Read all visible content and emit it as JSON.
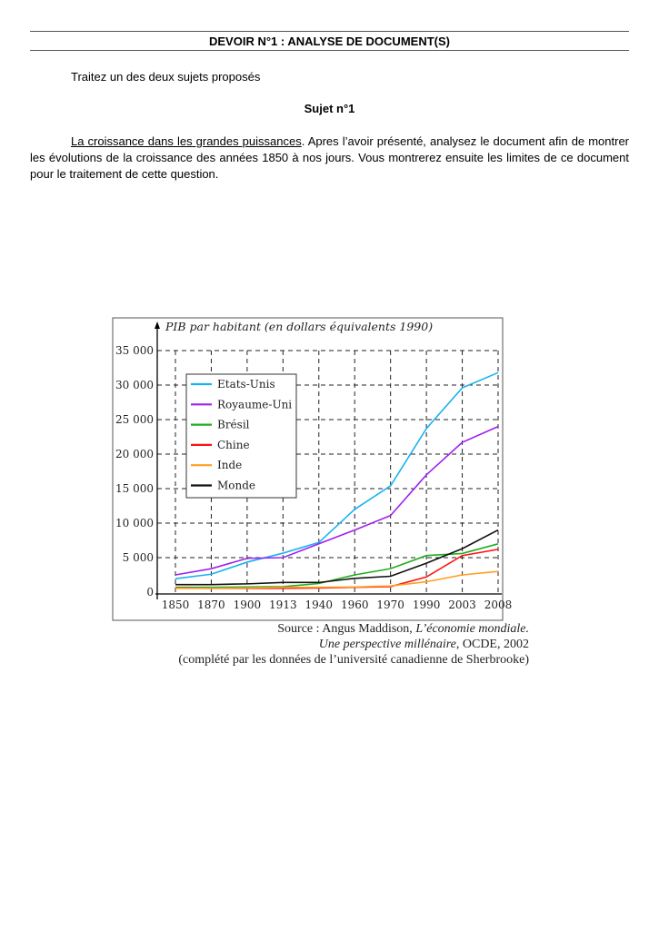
{
  "header": {
    "title": "DEVOIR N°1 : ANALYSE DE DOCUMENT(S)"
  },
  "intro": "Traitez un des deux sujets proposés",
  "subject": {
    "heading": "Sujet n°1",
    "underlined": "La croissance dans les grandes puissances",
    "text": ". Apres l’avoir présenté, analysez le document afin de montrer les évolutions de la croissance des années 1850 à nos jours. Vous montrerez ensuite les limites de ce document pour le traitement de cette question."
  },
  "chart_data": {
    "type": "line",
    "ylabel": "PIB par habitant (en dollars équivalents 1990)",
    "categories": [
      "1850",
      "1870",
      "1900",
      "1913",
      "1940",
      "1960",
      "1970",
      "1990",
      "2003",
      "2008"
    ],
    "yticks": [
      "0",
      "5 000",
      "10 000",
      "15 000",
      "20 000",
      "25 000",
      "30 000",
      "35 000"
    ],
    "ylim": [
      0,
      35000
    ],
    "grid": true,
    "legend_position": "top-left",
    "series": [
      {
        "name": "Etats-Unis",
        "color": "#1ab2f0",
        "values": [
          1950,
          2600,
          4350,
          5650,
          7200,
          12000,
          15400,
          23700,
          29600,
          31800
        ]
      },
      {
        "name": "Royaume-Uni",
        "color": "#a020f0",
        "values": [
          2500,
          3400,
          4900,
          5000,
          7000,
          9000,
          11100,
          17000,
          21700,
          24000
        ]
      },
      {
        "name": "Brésil",
        "color": "#1fae1f",
        "values": [
          700,
          700,
          750,
          800,
          1250,
          2500,
          3400,
          5300,
          5600,
          7000
        ]
      },
      {
        "name": "Chine",
        "color": "#ff1010",
        "values": [
          600,
          550,
          550,
          550,
          600,
          700,
          800,
          2200,
          5300,
          6200
        ]
      },
      {
        "name": "Inde",
        "color": "#ffa020",
        "values": [
          550,
          550,
          600,
          700,
          700,
          750,
          900,
          1500,
          2500,
          3000
        ]
      },
      {
        "name": "Monde",
        "color": "#111111",
        "values": [
          1100,
          1100,
          1200,
          1400,
          1400,
          2000,
          2300,
          4200,
          6300,
          9000
        ]
      }
    ]
  },
  "source": {
    "line1_prefix": "Source : Angus Maddison, ",
    "line1_italic": "L’économie mondiale.",
    "line2_italic": "Une perspective millénaire",
    "line2_suffix": ", OCDE, 2002",
    "line3": "(complété par les données de l’université canadienne de Sherbrooke)"
  }
}
